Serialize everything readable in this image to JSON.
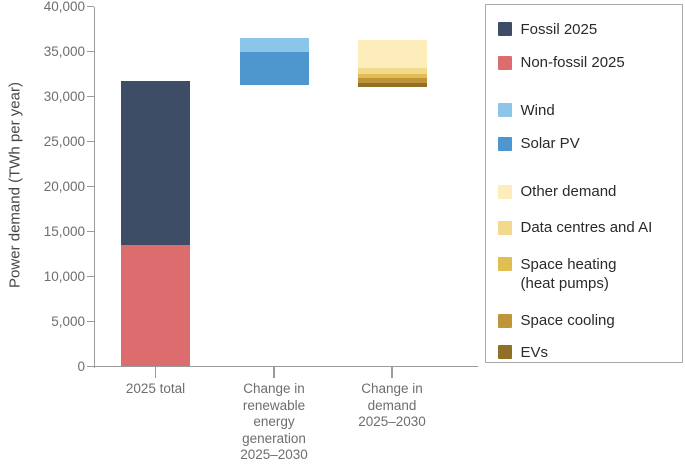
{
  "chart_data": {
    "type": "bar",
    "subtype": "stacked-floating-columns",
    "title": "",
    "ylabel": "Power demand (TWh per year)",
    "xlabel": "",
    "ylim": [
      0,
      40000
    ],
    "ytick_interval": 5000,
    "ytick_labels": [
      "0",
      "5,000",
      "10,000",
      "15,000",
      "20,000",
      "25,000",
      "30,000",
      "35,000",
      "40,000"
    ],
    "grid": false,
    "legend_position": "right",
    "categories": [
      "2025 total",
      "Change in renewable energy generation 2025–2030",
      "Change in demand 2025–2030"
    ],
    "bars": [
      {
        "label": "2025 total",
        "label_lines": [
          "2025 total"
        ],
        "base": 0,
        "top": 31700,
        "segments": [
          {
            "name": "Non-fossil 2025",
            "value": 13500,
            "color": "#DD6C6E"
          },
          {
            "name": "Fossil 2025",
            "value": 18200,
            "color": "#3E4D66"
          }
        ]
      },
      {
        "label": "Change in renewable energy generation 2025–2030",
        "label_lines": [
          "Change in",
          "renewable",
          "energy",
          "generation",
          "2025–2030"
        ],
        "base": 31300,
        "top": 36500,
        "segments": [
          {
            "name": "Solar PV",
            "value": 3700,
            "color": "#4E96CE"
          },
          {
            "name": "Wind",
            "value": 1500,
            "color": "#8CC5EA"
          }
        ]
      },
      {
        "label": "Change in demand 2025–2030",
        "label_lines": [
          "Change in",
          "demand",
          "2025–2030"
        ],
        "base": 31100,
        "top": 36300,
        "segments": [
          {
            "name": "EVs",
            "value": 450,
            "color": "#8F7026"
          },
          {
            "name": "Space cooling",
            "value": 450,
            "color": "#C0953A"
          },
          {
            "name": "Space heating (heat pumps)",
            "value": 550,
            "color": "#E2BE52"
          },
          {
            "name": "Data centres and AI",
            "value": 600,
            "color": "#F3D98C"
          },
          {
            "name": "Other demand",
            "value": 3150,
            "color": "#FDEDBA"
          }
        ]
      }
    ],
    "legend": {
      "groups": [
        {
          "items": [
            {
              "label": "Fossil 2025",
              "color": "#3E4D66"
            },
            {
              "label": "Non-fossil 2025",
              "color": "#DD6C6E"
            }
          ]
        },
        {
          "items": [
            {
              "label": "Wind",
              "color": "#8CC5EA"
            },
            {
              "label": "Solar PV",
              "color": "#4E96CE"
            }
          ]
        },
        {
          "items": [
            {
              "label": "Other demand",
              "color": "#FDEDBA"
            },
            {
              "label": "Data centres and AI",
              "color": "#F3D98C"
            },
            {
              "label": "Space heating",
              "label2": "(heat pumps)",
              "color": "#E2BE52"
            },
            {
              "label": "Space cooling",
              "color": "#C0953A"
            },
            {
              "label": "EVs",
              "color": "#8F7026"
            }
          ]
        }
      ]
    }
  }
}
